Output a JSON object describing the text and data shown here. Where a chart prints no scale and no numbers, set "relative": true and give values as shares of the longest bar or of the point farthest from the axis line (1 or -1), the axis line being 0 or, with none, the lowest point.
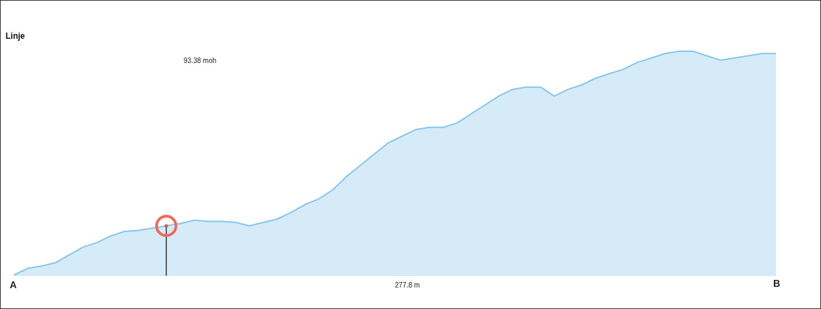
{
  "chart_data": {
    "type": "area",
    "title": "Linje",
    "relative": true,
    "categories": [
      null,
      null,
      null,
      null,
      null,
      null,
      null,
      null,
      null,
      null,
      null,
      null,
      null,
      null,
      null,
      null,
      null,
      null,
      null,
      null,
      null,
      null,
      null,
      null,
      null,
      null,
      null,
      null,
      null,
      null,
      null,
      null,
      null,
      null,
      null,
      null,
      null,
      null,
      null,
      null,
      null,
      null,
      null,
      null,
      null,
      null,
      null,
      null,
      null,
      null,
      null,
      null,
      null,
      null,
      null,
      null
    ],
    "series": [
      {
        "color": "#86c6ec",
        "values": [
          0,
          0.03,
          0.04,
          0.055,
          0.09,
          0.125,
          0.145,
          0.175,
          0.195,
          0.2,
          0.21,
          0.22,
          0.23,
          0.245,
          0.24,
          0.24,
          0.235,
          0.22,
          0.235,
          0.25,
          0.28,
          0.315,
          0.34,
          0.38,
          0.44,
          0.49,
          0.54,
          0.59,
          0.62,
          0.65,
          0.66,
          0.66,
          0.68,
          0.72,
          0.76,
          0.8,
          0.83,
          0.84,
          0.84,
          0.8,
          0.83,
          0.85,
          0.88,
          0.9,
          0.92,
          0.95,
          0.97,
          0.99,
          1,
          1,
          0.98,
          0.96,
          0.97,
          0.98,
          0.99,
          0.99
        ]
      }
    ],
    "annotations": [
      "93.38 moh",
      "277.8 m",
      "A",
      "B"
    ]
  }
}
